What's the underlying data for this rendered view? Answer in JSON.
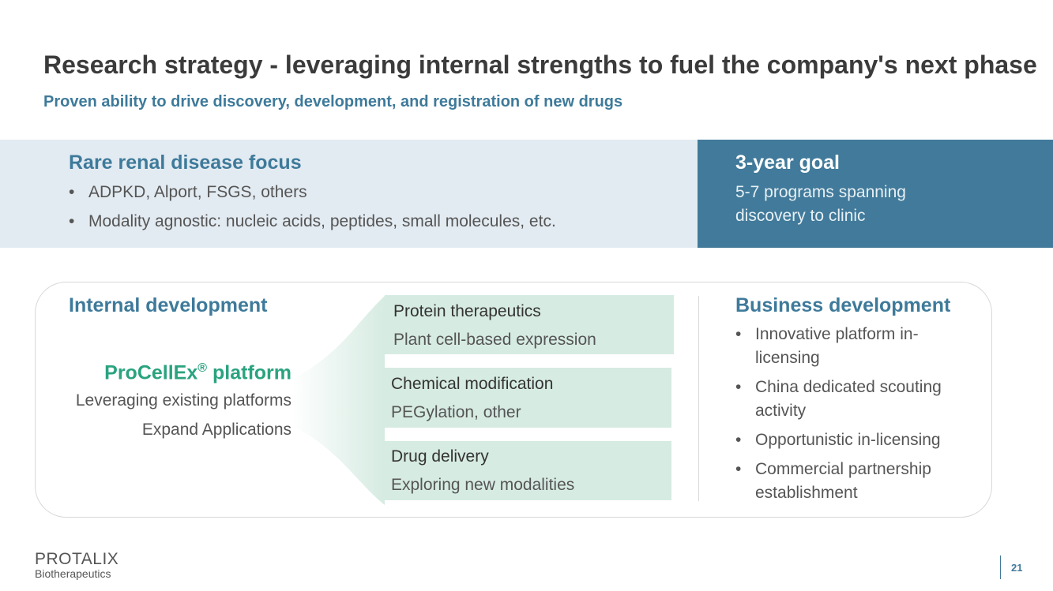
{
  "header": {
    "title": "Research strategy - leveraging internal strengths to fuel the company's next phase",
    "subtitle": "Proven ability to drive discovery, development, and registration of new drugs"
  },
  "focus": {
    "heading": "Rare renal disease focus",
    "bullets": [
      "ADPKD, Alport, FSGS, others",
      "Modality agnostic: nucleic acids, peptides, small molecules, etc."
    ]
  },
  "goal": {
    "heading": "3-year goal",
    "text": "5-7 programs spanning discovery to clinic"
  },
  "internal": {
    "heading": "Internal development",
    "platform": {
      "name": "ProCellEx",
      "mark": "®",
      "suffix": "platform"
    },
    "lines": [
      "Leveraging existing platforms",
      "Expand Applications"
    ]
  },
  "boxes": [
    {
      "title": "Protein therapeutics",
      "text": "Plant cell-based expression"
    },
    {
      "title": "Chemical modification",
      "text": "PEGylation, other"
    },
    {
      "title": "Drug delivery",
      "text": "Exploring new modalities"
    }
  ],
  "business": {
    "heading": "Business development",
    "bullets": [
      "Innovative platform in-licensing",
      "China dedicated scouting activity",
      "Opportunistic in-licensing",
      "Commercial partnership establishment"
    ]
  },
  "footer": {
    "logo": "PROTALIX",
    "tagline": "Biotherapeutics",
    "page": 21
  }
}
